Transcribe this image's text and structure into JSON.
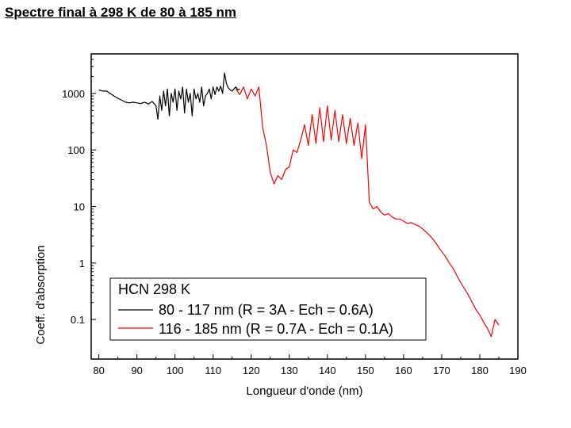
{
  "slide": {
    "title": "Spectre final à 298 K de 80 à 185 nm"
  },
  "chart_data": {
    "type": "line",
    "title": "",
    "xlabel": "Longueur d'onde (nm)",
    "ylabel": "Coeff. d'absorption",
    "xlim": [
      78,
      190
    ],
    "ylim": [
      0.02,
      5000
    ],
    "yscale": "log",
    "xticks": [
      80,
      90,
      100,
      110,
      120,
      130,
      140,
      150,
      160,
      170,
      180,
      190
    ],
    "yticks": [
      {
        "value": 0.1,
        "label": "0.1"
      },
      {
        "value": 1,
        "label": "1"
      },
      {
        "value": 10,
        "label": "10"
      },
      {
        "value": 100,
        "label": "100"
      },
      {
        "value": 1000,
        "label": "1000"
      }
    ],
    "legend": {
      "title": "HCN 298 K",
      "position": "bottom-left"
    },
    "series": [
      {
        "name": "80 - 117 nm (R = 3A - Ech = 0.6A)",
        "color": "#000000",
        "x": [
          80,
          81,
          82,
          83,
          84,
          85,
          86,
          87,
          88,
          89,
          90,
          91,
          92,
          93,
          94,
          95,
          95.5,
          96,
          96.5,
          97,
          97.5,
          98,
          98.5,
          99,
          99.5,
          100,
          100.5,
          101,
          101.5,
          102,
          102.5,
          103,
          103.5,
          104,
          104.5,
          105,
          105.5,
          106,
          106.5,
          107,
          107.5,
          108,
          108.5,
          109,
          109.5,
          110,
          110.5,
          111,
          111.5,
          112,
          112.5,
          113,
          113.5,
          114,
          114.5,
          115,
          115.5,
          116,
          116.5,
          117
        ],
        "y": [
          1150,
          1100,
          1100,
          1000,
          900,
          820,
          760,
          700,
          680,
          700,
          680,
          660,
          700,
          650,
          720,
          600,
          350,
          900,
          500,
          1100,
          600,
          1200,
          400,
          1000,
          700,
          1200,
          500,
          1100,
          800,
          1300,
          450,
          1200,
          700,
          1000,
          400,
          1200,
          800,
          1000,
          700,
          1300,
          600,
          900,
          1000,
          1200,
          800,
          1300,
          950,
          1300,
          1100,
          1350,
          1000,
          2300,
          1500,
          1250,
          1150,
          1100,
          1200,
          1300,
          1150,
          1200
        ]
      },
      {
        "name": "116 - 185 nm (R = 0.7A - Ech = 0.1A)",
        "color": "#ff0000",
        "x": [
          116,
          117,
          118,
          119,
          120,
          121,
          122,
          123,
          124,
          125,
          126,
          127,
          128,
          129,
          130,
          131,
          132,
          133,
          134,
          135,
          136,
          137,
          138,
          139,
          140,
          141,
          142,
          143,
          144,
          145,
          146,
          147,
          148,
          149,
          150,
          151,
          152,
          153,
          154,
          155,
          156,
          157,
          158,
          159,
          160,
          161,
          162,
          163,
          164,
          165,
          166,
          167,
          168,
          169,
          170,
          171,
          172,
          173,
          174,
          175,
          176,
          177,
          178,
          179,
          180,
          181,
          182,
          183,
          184,
          185
        ],
        "y": [
          1200,
          950,
          1300,
          800,
          1200,
          900,
          1300,
          250,
          120,
          40,
          25,
          35,
          30,
          45,
          50,
          100,
          90,
          150,
          280,
          120,
          420,
          130,
          560,
          140,
          600,
          150,
          500,
          140,
          420,
          130,
          360,
          120,
          300,
          70,
          280,
          12,
          9,
          10,
          8,
          7,
          7.5,
          6.5,
          6,
          6,
          5.5,
          5,
          5.2,
          4.8,
          4.5,
          4,
          3.5,
          3,
          2.5,
          2,
          1.6,
          1.3,
          1.0,
          0.8,
          0.6,
          0.45,
          0.35,
          0.27,
          0.2,
          0.15,
          0.12,
          0.09,
          0.07,
          0.05,
          0.1,
          0.08
        ]
      }
    ]
  }
}
